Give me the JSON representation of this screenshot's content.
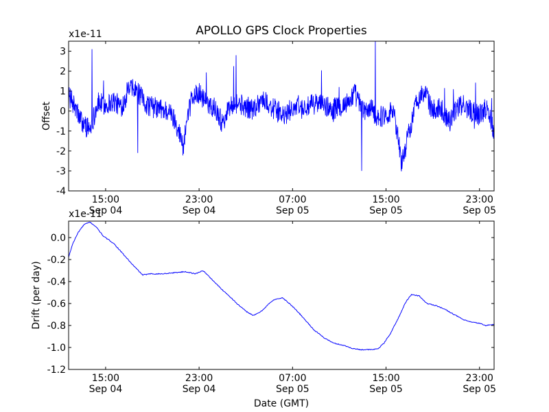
{
  "title": "APOLLO GPS Clock Properties",
  "xlabel": "Date (GMT)",
  "x_ticks": [
    {
      "time": "15:00",
      "date": "Sep 04"
    },
    {
      "time": "23:00",
      "date": "Sep 04"
    },
    {
      "time": "07:00",
      "date": "Sep 05"
    },
    {
      "time": "15:00",
      "date": "Sep 05"
    },
    {
      "time": "23:00",
      "date": "Sep 05"
    }
  ],
  "colors": {
    "series": "#0000ff",
    "axes": "#000000",
    "background": "#ffffff"
  },
  "chart_data": [
    {
      "type": "line",
      "ylabel": "Offset",
      "offset_text": "x1e-11",
      "xlim": [
        "2012-09-04 11:50",
        "2012-09-06 00:15"
      ],
      "ylim": [
        -4,
        3.5
      ],
      "yticks": [
        -4,
        -3,
        -2,
        -1,
        0,
        1,
        2,
        3
      ],
      "ytick_labels": [
        "-4",
        "-3",
        "-2",
        "-1",
        "0",
        "1",
        "2",
        "3"
      ],
      "grid": false,
      "series": [
        {
          "x": [
            "2012-09-04 11:50",
            "2012-09-04 12:20",
            "2012-09-04 13:00",
            "2012-09-04 13:40",
            "2012-09-04 14:20",
            "2012-09-04 15:00",
            "2012-09-04 15:40",
            "2012-09-04 16:20",
            "2012-09-04 17:00",
            "2012-09-04 17:40",
            "2012-09-04 18:20",
            "2012-09-04 19:00",
            "2012-09-04 19:40",
            "2012-09-04 20:20",
            "2012-09-04 21:00",
            "2012-09-04 21:40",
            "2012-09-04 22:20",
            "2012-09-04 23:00",
            "2012-09-04 23:40",
            "2012-09-05 00:20",
            "2012-09-05 01:00",
            "2012-09-05 01:40",
            "2012-09-05 02:20",
            "2012-09-05 03:00",
            "2012-09-05 03:40",
            "2012-09-05 04:20",
            "2012-09-05 05:00",
            "2012-09-05 05:40",
            "2012-09-05 06:20",
            "2012-09-05 07:00",
            "2012-09-05 07:40",
            "2012-09-05 08:20",
            "2012-09-05 09:00",
            "2012-09-05 09:40",
            "2012-09-05 10:20",
            "2012-09-05 11:00",
            "2012-09-05 11:40",
            "2012-09-05 12:20",
            "2012-09-05 13:00",
            "2012-09-05 13:40",
            "2012-09-05 14:20",
            "2012-09-05 15:00",
            "2012-09-05 15:40",
            "2012-09-05 16:20",
            "2012-09-05 17:00",
            "2012-09-05 17:40",
            "2012-09-05 18:20",
            "2012-09-05 19:00",
            "2012-09-05 19:40",
            "2012-09-05 20:20",
            "2012-09-05 21:00",
            "2012-09-05 21:40",
            "2012-09-05 22:20",
            "2012-09-05 23:00",
            "2012-09-05 23:40",
            "2012-09-06 00:15"
          ],
          "values": [
            0.8,
            0.2,
            -0.6,
            -0.9,
            0.4,
            0.3,
            0.5,
            0.2,
            1.1,
            1.0,
            0.4,
            0.2,
            0.1,
            0.0,
            -0.5,
            -1.8,
            0.6,
            0.9,
            0.4,
            0.2,
            -0.6,
            0.3,
            0.4,
            0.2,
            0.1,
            0.6,
            0.3,
            0.0,
            -0.3,
            0.2,
            0.1,
            0.2,
            0.4,
            0.3,
            0.1,
            0.2,
            0.4,
            0.9,
            0.0,
            0.1,
            -0.3,
            -0.2,
            0.1,
            -2.6,
            -1.0,
            0.6,
            0.9,
            0.0,
            0.2,
            -0.5,
            0.1,
            0.3,
            0.0,
            -0.2,
            0.2,
            -1.0
          ]
        }
      ]
    },
    {
      "type": "line",
      "ylabel": "Drift (per day)",
      "offset_text": "x1e-11",
      "xlim": [
        "2012-09-04 11:50",
        "2012-09-06 00:15"
      ],
      "ylim": [
        -1.2,
        0.15
      ],
      "yticks": [
        -1.2,
        -1.0,
        -0.8,
        -0.6,
        -0.4,
        -0.2,
        0.0
      ],
      "ytick_labels": [
        "-1.2",
        "-1.0",
        "-0.8",
        "-0.6",
        "-0.4",
        "-0.2",
        "0.0"
      ],
      "grid": false,
      "series": [
        {
          "x": [
            "2012-09-04 11:50",
            "2012-09-04 12:10",
            "2012-09-04 12:40",
            "2012-09-04 13:10",
            "2012-09-04 13:40",
            "2012-09-04 14:10",
            "2012-09-04 14:50",
            "2012-09-04 15:40",
            "2012-09-04 16:30",
            "2012-09-04 17:20",
            "2012-09-04 18:10",
            "2012-09-04 18:50",
            "2012-09-04 19:50",
            "2012-09-04 20:50",
            "2012-09-04 21:50",
            "2012-09-04 22:40",
            "2012-09-04 23:20",
            "2012-09-05 00:00",
            "2012-09-05 00:50",
            "2012-09-05 01:40",
            "2012-09-05 02:20",
            "2012-09-05 03:00",
            "2012-09-05 03:40",
            "2012-09-05 04:20",
            "2012-09-05 05:00",
            "2012-09-05 05:30",
            "2012-09-05 06:10",
            "2012-09-05 06:50",
            "2012-09-05 07:30",
            "2012-09-05 08:10",
            "2012-09-05 08:50",
            "2012-09-05 09:40",
            "2012-09-05 10:30",
            "2012-09-05 11:20",
            "2012-09-05 12:10",
            "2012-09-05 12:50",
            "2012-09-05 13:20",
            "2012-09-05 13:50",
            "2012-09-05 14:20",
            "2012-09-05 14:50",
            "2012-09-05 15:20",
            "2012-09-05 15:50",
            "2012-09-05 16:20",
            "2012-09-05 16:40",
            "2012-09-05 17:10",
            "2012-09-05 17:50",
            "2012-09-05 18:30",
            "2012-09-05 19:20",
            "2012-09-05 20:10",
            "2012-09-05 20:50",
            "2012-09-05 21:40",
            "2012-09-05 22:20",
            "2012-09-05 23:00",
            "2012-09-05 23:30",
            "2012-09-06 00:15"
          ],
          "values": [
            -0.18,
            -0.06,
            0.05,
            0.12,
            0.14,
            0.1,
            0.01,
            -0.05,
            -0.15,
            -0.25,
            -0.34,
            -0.33,
            -0.33,
            -0.32,
            -0.31,
            -0.33,
            -0.3,
            -0.37,
            -0.46,
            -0.54,
            -0.61,
            -0.67,
            -0.71,
            -0.67,
            -0.6,
            -0.56,
            -0.55,
            -0.61,
            -0.68,
            -0.76,
            -0.84,
            -0.91,
            -0.96,
            -0.98,
            -1.01,
            -1.02,
            -1.02,
            -1.02,
            -1.01,
            -0.96,
            -0.88,
            -0.78,
            -0.67,
            -0.59,
            -0.52,
            -0.53,
            -0.6,
            -0.62,
            -0.66,
            -0.7,
            -0.75,
            -0.77,
            -0.78,
            -0.8,
            -0.79
          ]
        }
      ]
    }
  ]
}
